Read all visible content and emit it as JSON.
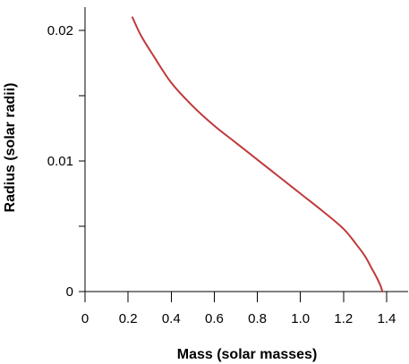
{
  "chart_data": {
    "type": "line",
    "title": "",
    "xlabel": "Mass (solar masses)",
    "ylabel": "Radius (solar radii)",
    "xlim": [
      0,
      1.4
    ],
    "ylim": [
      0,
      0.02
    ],
    "x_ticks": [
      0,
      0.2,
      0.4,
      0.6,
      0.8,
      1.0,
      1.2,
      1.4
    ],
    "x_tick_labels": [
      "0",
      "0.2",
      "0.4",
      "0.6",
      "0.8",
      "1.0",
      "1.2",
      "1.4"
    ],
    "y_ticks": [
      0,
      0.005,
      0.01,
      0.015,
      0.02
    ],
    "y_tick_labels": [
      "0",
      "",
      "0.01",
      "",
      "0.02"
    ],
    "grid": false,
    "legend": "none",
    "series": [
      {
        "color": "#c0393b",
        "x": [
          0.22,
          0.26,
          0.32,
          0.4,
          0.5,
          0.6,
          0.7,
          0.8,
          0.9,
          1.0,
          1.1,
          1.2,
          1.26,
          1.3,
          1.33,
          1.35,
          1.365,
          1.375,
          1.38
        ],
        "y": [
          0.021,
          0.0196,
          0.018,
          0.016,
          0.0142,
          0.0127,
          0.0114,
          0.0101,
          0.0088,
          0.0075,
          0.0062,
          0.0048,
          0.0036,
          0.0027,
          0.0018,
          0.0012,
          0.0007,
          0.0003,
          0.0
        ]
      }
    ]
  }
}
